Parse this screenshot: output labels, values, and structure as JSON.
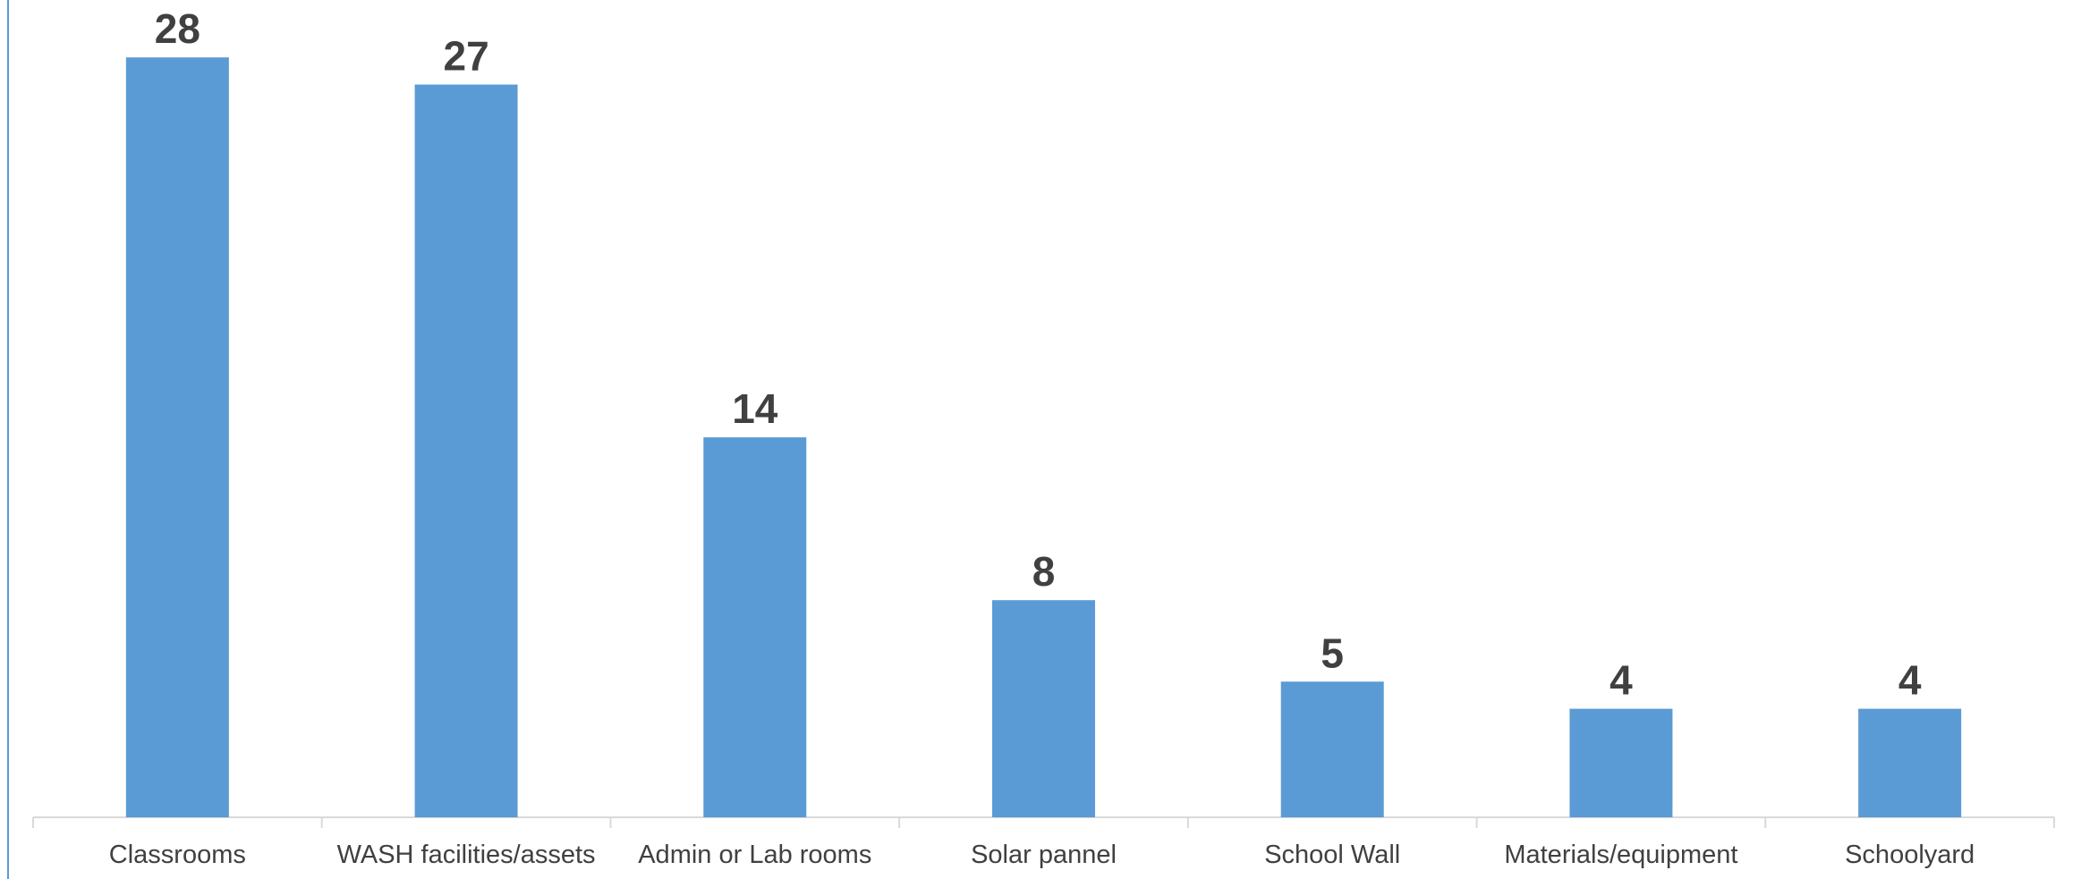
{
  "chart_data": {
    "type": "bar",
    "categories": [
      "Classrooms",
      "WASH facilities/assets",
      "Admin or Lab rooms",
      "Solar pannel",
      "School Wall",
      "Materials/equipment",
      "Schoolyard"
    ],
    "values": [
      28,
      27,
      14,
      8,
      5,
      4,
      4
    ],
    "title": "",
    "xlabel": "",
    "ylabel": "",
    "ylim": [
      0,
      30
    ],
    "grid": false,
    "data_labels": true,
    "colors": {
      "bar": "#5b9bd5",
      "text": "#404040",
      "axis": "#d9d9d9",
      "frame": "#5b9bd5"
    }
  }
}
